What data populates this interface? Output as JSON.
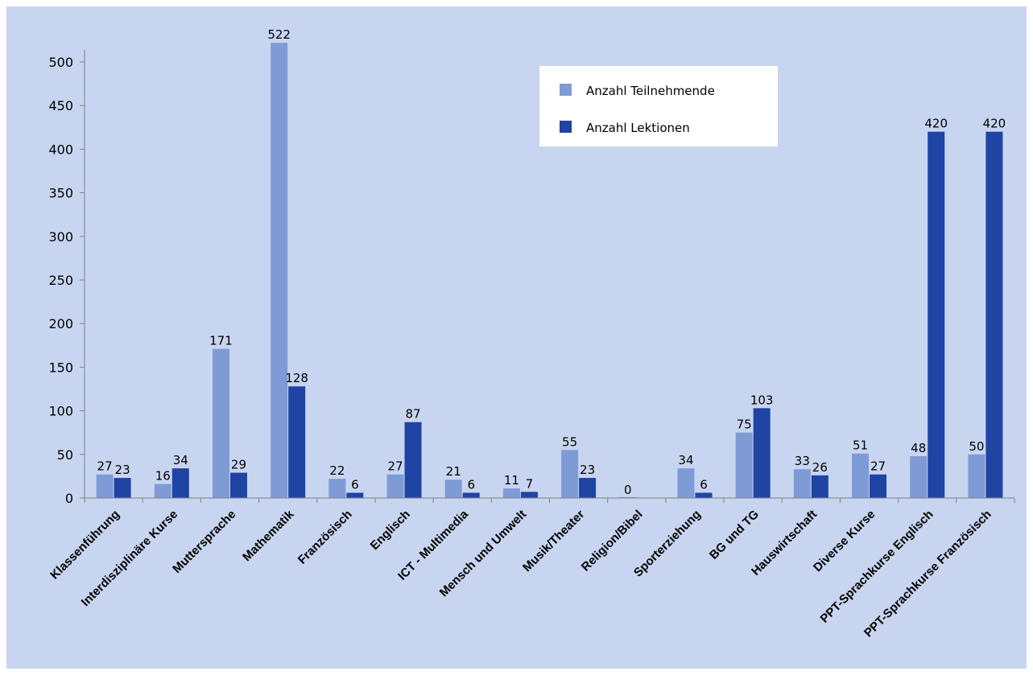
{
  "colors": {
    "background": "#c8d5f0",
    "plot_area": "#c8d5f0",
    "axis": "#808080",
    "legend_bg": "#ffffff"
  },
  "chart_data": {
    "type": "bar",
    "title": "",
    "xlabel": "",
    "ylabel": "",
    "ylim": [
      0,
      522
    ],
    "yticks": [
      0,
      50,
      100,
      150,
      200,
      250,
      300,
      350,
      400,
      450,
      500
    ],
    "grid": false,
    "legend_position": "top-right",
    "categories": [
      "Klassenführung",
      "Interdisziplinäre Kurse",
      "Muttersprache",
      "Mathematik",
      "Französisch",
      "Englisch",
      "ICT - Multimedia",
      "Mensch und Umwelt",
      "Musik/Theater",
      "Religion/Bibel",
      "Sporterziehung",
      "BG und TG",
      "Hauswirtschaft",
      "Diverse Kurse",
      "PPT-Sprachkurse Englisch",
      "PPT-Sprachkurse Französisch"
    ],
    "series": [
      {
        "name": "Anzahl Teilnehmende",
        "color": "#7f9bd6",
        "values": [
          27,
          16,
          171,
          522,
          22,
          27,
          21,
          11,
          55,
          0,
          34,
          75,
          33,
          51,
          48,
          50
        ],
        "labels": [
          "27",
          "16",
          "171",
          "522",
          "22",
          "27",
          "21",
          "11",
          "55",
          "0",
          "34",
          "75",
          "33",
          "51",
          "48",
          "50"
        ]
      },
      {
        "name": "Anzahl Lektionen",
        "color": "#1f44a3",
        "values": [
          23,
          34,
          29,
          128,
          6,
          87,
          6,
          7,
          23,
          null,
          6,
          103,
          26,
          27,
          420,
          420
        ],
        "labels": [
          "23",
          "34",
          "29",
          "128",
          "6",
          "87",
          "6",
          "7",
          "23",
          null,
          "6",
          "103",
          "26",
          "27",
          "420",
          "420"
        ]
      }
    ]
  }
}
